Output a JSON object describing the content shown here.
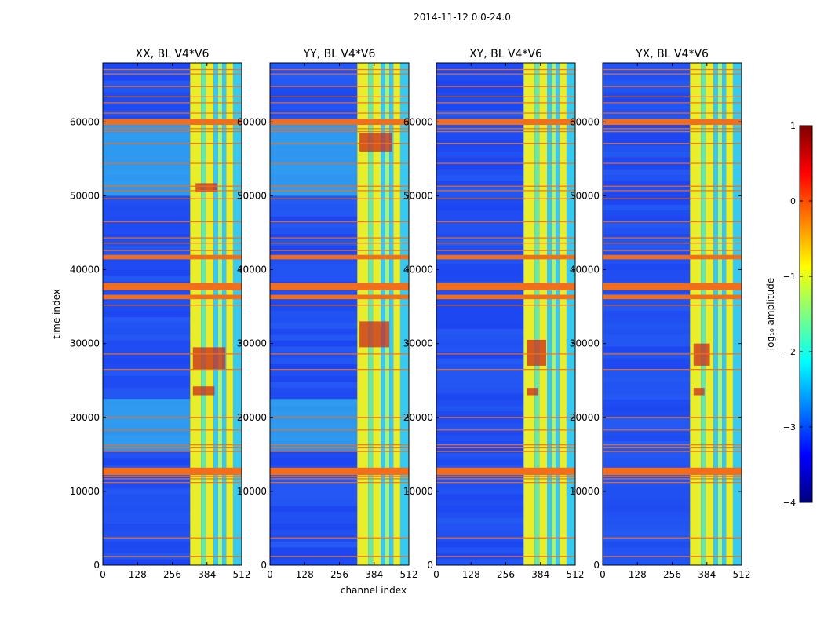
{
  "figure": {
    "suptitle": "2014-11-12 0.0-24.0",
    "xlabel": "channel index",
    "ylabel": "time index"
  },
  "colors": {
    "background_low": "#1a3cf0",
    "background_mid": "#2f78f7",
    "band_cyan": "#39c9ef",
    "band_yellow": "#e9ee2c",
    "band_green": "#68e8a8",
    "band_lightgreen": "#a9f27a",
    "stripe_orange": "#f36e1c",
    "hot_red": "#cc2a1c",
    "colormap": [
      "#00007f",
      "#0000ff",
      "#007fff",
      "#00ffff",
      "#7fff7f",
      "#ffff00",
      "#ff7f00",
      "#ff0000",
      "#7f0000"
    ]
  },
  "chart_data": [
    {
      "type": "heatmap",
      "title": "XX, BL V4*V6",
      "xlim": [
        0,
        512
      ],
      "ylim": [
        0,
        68000
      ],
      "xticks": [
        0,
        128,
        256,
        384,
        512
      ],
      "xtick_labels": [
        "0",
        "128",
        "256",
        "384",
        "512"
      ],
      "yticks": [
        0,
        10000,
        20000,
        30000,
        40000,
        50000,
        60000
      ],
      "ytick_labels": [
        "0",
        "10000",
        "20000",
        "30000",
        "40000",
        "50000",
        "60000"
      ],
      "band_start": 322,
      "cyan_block": true,
      "cyan_channels": [
        0,
        322
      ],
      "cyan_time_ranges": [
        [
          50000,
          60000
        ],
        [
          15500,
          22500
        ]
      ],
      "hot_regions": [
        {
          "x": 342,
          "y": 50500,
          "w": 80,
          "h": 1200
        },
        {
          "x": 332,
          "y": 26500,
          "w": 120,
          "h": 3000
        },
        {
          "x": 332,
          "y": 23000,
          "w": 80,
          "h": 1200
        }
      ]
    },
    {
      "type": "heatmap",
      "title": "YY, BL V4*V6",
      "xlim": [
        0,
        512
      ],
      "ylim": [
        0,
        68000
      ],
      "xticks": [
        0,
        128,
        256,
        384,
        512
      ],
      "xtick_labels": [
        "0",
        "128",
        "256",
        "384",
        "512"
      ],
      "yticks": [
        0,
        10000,
        20000,
        30000,
        40000,
        50000,
        60000
      ],
      "ytick_labels": [
        "0",
        "10000",
        "20000",
        "30000",
        "40000",
        "50000",
        "60000"
      ],
      "band_start": 322,
      "cyan_block": true,
      "cyan_channels": [
        0,
        322
      ],
      "cyan_time_ranges": [
        [
          50000,
          60000
        ],
        [
          15500,
          22500
        ]
      ],
      "hot_regions": [
        {
          "x": 330,
          "y": 29500,
          "w": 110,
          "h": 3500
        },
        {
          "x": 330,
          "y": 56000,
          "w": 120,
          "h": 2500
        }
      ]
    },
    {
      "type": "heatmap",
      "title": "XY, BL V4*V6",
      "xlim": [
        0,
        512
      ],
      "ylim": [
        0,
        68000
      ],
      "xticks": [
        0,
        128,
        256,
        384,
        512
      ],
      "xtick_labels": [
        "0",
        "128",
        "256",
        "384",
        "512"
      ],
      "yticks": [
        0,
        10000,
        20000,
        30000,
        40000,
        50000,
        60000
      ],
      "ytick_labels": [
        "0",
        "10000",
        "20000",
        "30000",
        "40000",
        "50000",
        "60000"
      ],
      "band_start": 322,
      "cyan_block": false,
      "cyan_channels": [
        0,
        322
      ],
      "cyan_time_ranges": [],
      "hot_regions": [
        {
          "x": 335,
          "y": 27000,
          "w": 70,
          "h": 3500
        },
        {
          "x": 335,
          "y": 23000,
          "w": 40,
          "h": 1000
        }
      ]
    },
    {
      "type": "heatmap",
      "title": "YX, BL V4*V6",
      "xlim": [
        0,
        512
      ],
      "ylim": [
        0,
        68000
      ],
      "xticks": [
        0,
        128,
        256,
        384,
        512
      ],
      "xtick_labels": [
        "0",
        "128",
        "256",
        "384",
        "512"
      ],
      "yticks": [
        0,
        10000,
        20000,
        30000,
        40000,
        50000,
        60000
      ],
      "ytick_labels": [
        "0",
        "10000",
        "20000",
        "30000",
        "40000",
        "50000",
        "60000"
      ],
      "band_start": 322,
      "cyan_block": false,
      "cyan_channels": [
        0,
        322
      ],
      "cyan_time_ranges": [],
      "hot_regions": [
        {
          "x": 335,
          "y": 27000,
          "w": 60,
          "h": 3000
        },
        {
          "x": 335,
          "y": 23000,
          "w": 40,
          "h": 1000
        }
      ]
    }
  ],
  "shared_features": {
    "band_channels": [
      [
        322,
        362
      ],
      [
        362,
        380
      ],
      [
        380,
        408
      ],
      [
        408,
        425
      ],
      [
        425,
        440
      ],
      [
        440,
        455
      ],
      [
        455,
        480
      ],
      [
        480,
        512
      ]
    ],
    "band_colors": [
      "band_yellow",
      "band_green",
      "band_yellow",
      "band_cyan",
      "band_lightgreen",
      "band_cyan",
      "band_yellow",
      "band_cyan"
    ],
    "thick_stripes": [
      {
        "t0": 12200,
        "t1": 13200
      },
      {
        "t0": 41400,
        "t1": 42000
      },
      {
        "t0": 37200,
        "t1": 38200
      },
      {
        "t0": 36000,
        "t1": 36600
      },
      {
        "t0": 59600,
        "t1": 60400
      }
    ],
    "thin_stripes": [
      1200,
      3700,
      11200,
      11700,
      12000,
      15400,
      15900,
      16300,
      18300,
      20000,
      26500,
      28600,
      35200,
      42600,
      43600,
      44300,
      46500,
      49600,
      50700,
      51300,
      54400,
      57100,
      58700,
      59100,
      61200,
      62600,
      63400,
      64800,
      66500,
      67100
    ]
  },
  "colorbar": {
    "label": "log₁₀ amplitude",
    "range": [
      -4,
      1
    ],
    "ticks": [
      1,
      0,
      -1,
      -2,
      -3,
      -4
    ],
    "tick_labels": [
      "1",
      "0",
      "−1",
      "−2",
      "−3",
      "−4"
    ]
  }
}
